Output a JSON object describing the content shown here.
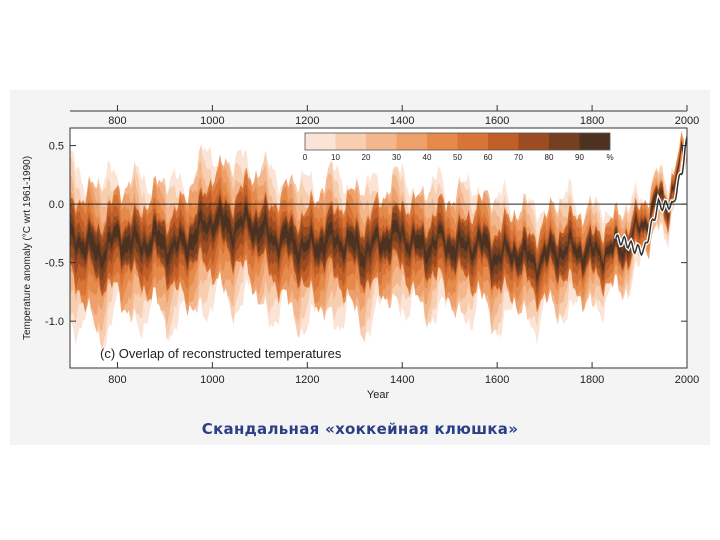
{
  "caption": "Скандальная «хоккейная клюшка»",
  "chart_data": {
    "type": "area",
    "panel_label": "(c) Overlap of reconstructed temperatures",
    "xlabel": "Year",
    "ylabel": "Temperature anomaly (°C wrt 1961-1990)",
    "xlim": [
      700,
      2000
    ],
    "ylim": [
      -1.4,
      0.65
    ],
    "x_ticks": [
      800,
      1000,
      1200,
      1400,
      1600,
      1800,
      2000
    ],
    "top_x_ticks": [
      800,
      1000,
      1200,
      1400,
      1600,
      1800,
      2000
    ],
    "y_ticks": [
      0.5,
      0.0,
      -0.5,
      -1.0
    ],
    "y_tick_labels": [
      "0.5",
      "0.0",
      "-0.5",
      "-1.0"
    ],
    "zero_line": 0.0,
    "legend": {
      "placement": "top-center",
      "unit": "%",
      "levels": [
        "0",
        "10",
        "20",
        "30",
        "40",
        "50",
        "60",
        "70",
        "80",
        "90"
      ],
      "colors": [
        "#fbe4d5",
        "#f8ceb0",
        "#f4b68c",
        "#eea06a",
        "#e58a4b",
        "#d87436",
        "#c05f27",
        "#9c4c20",
        "#744021",
        "#4d3222"
      ]
    },
    "center_series": {
      "x": [
        720,
        760,
        800,
        840,
        880,
        920,
        960,
        1000,
        1040,
        1080,
        1120,
        1160,
        1200,
        1240,
        1280,
        1320,
        1360,
        1400,
        1440,
        1480,
        1520,
        1560,
        1600,
        1640,
        1680,
        1720,
        1760,
        1800,
        1840,
        1880,
        1900,
        1920,
        1940,
        1960,
        1980,
        2000
      ],
      "y": [
        -0.3,
        -0.42,
        -0.28,
        -0.35,
        -0.3,
        -0.38,
        -0.28,
        -0.12,
        -0.2,
        -0.15,
        -0.28,
        -0.3,
        -0.38,
        -0.3,
        -0.32,
        -0.4,
        -0.3,
        -0.25,
        -0.38,
        -0.3,
        -0.38,
        -0.32,
        -0.45,
        -0.4,
        -0.5,
        -0.4,
        -0.38,
        -0.42,
        -0.4,
        -0.32,
        -0.2,
        -0.1,
        0.05,
        0.0,
        0.25,
        0.55
      ]
    },
    "spread_halfwidth": [
      0.55,
      0.55,
      0.5,
      0.5,
      0.5,
      0.5,
      0.5,
      0.55,
      0.5,
      0.5,
      0.5,
      0.5,
      0.5,
      0.5,
      0.5,
      0.5,
      0.45,
      0.45,
      0.45,
      0.45,
      0.45,
      0.45,
      0.45,
      0.4,
      0.4,
      0.4,
      0.4,
      0.35,
      0.32,
      0.28,
      0.25,
      0.22,
      0.2,
      0.18,
      0.15,
      0.1
    ],
    "instrumental": {
      "x": [
        1850,
        1870,
        1890,
        1910,
        1920,
        1940,
        1950,
        1960,
        1970,
        1980,
        1990,
        2000
      ],
      "y": [
        -0.3,
        -0.32,
        -0.38,
        -0.4,
        -0.25,
        0.0,
        -0.02,
        0.0,
        -0.02,
        0.15,
        0.3,
        0.55
      ]
    }
  }
}
